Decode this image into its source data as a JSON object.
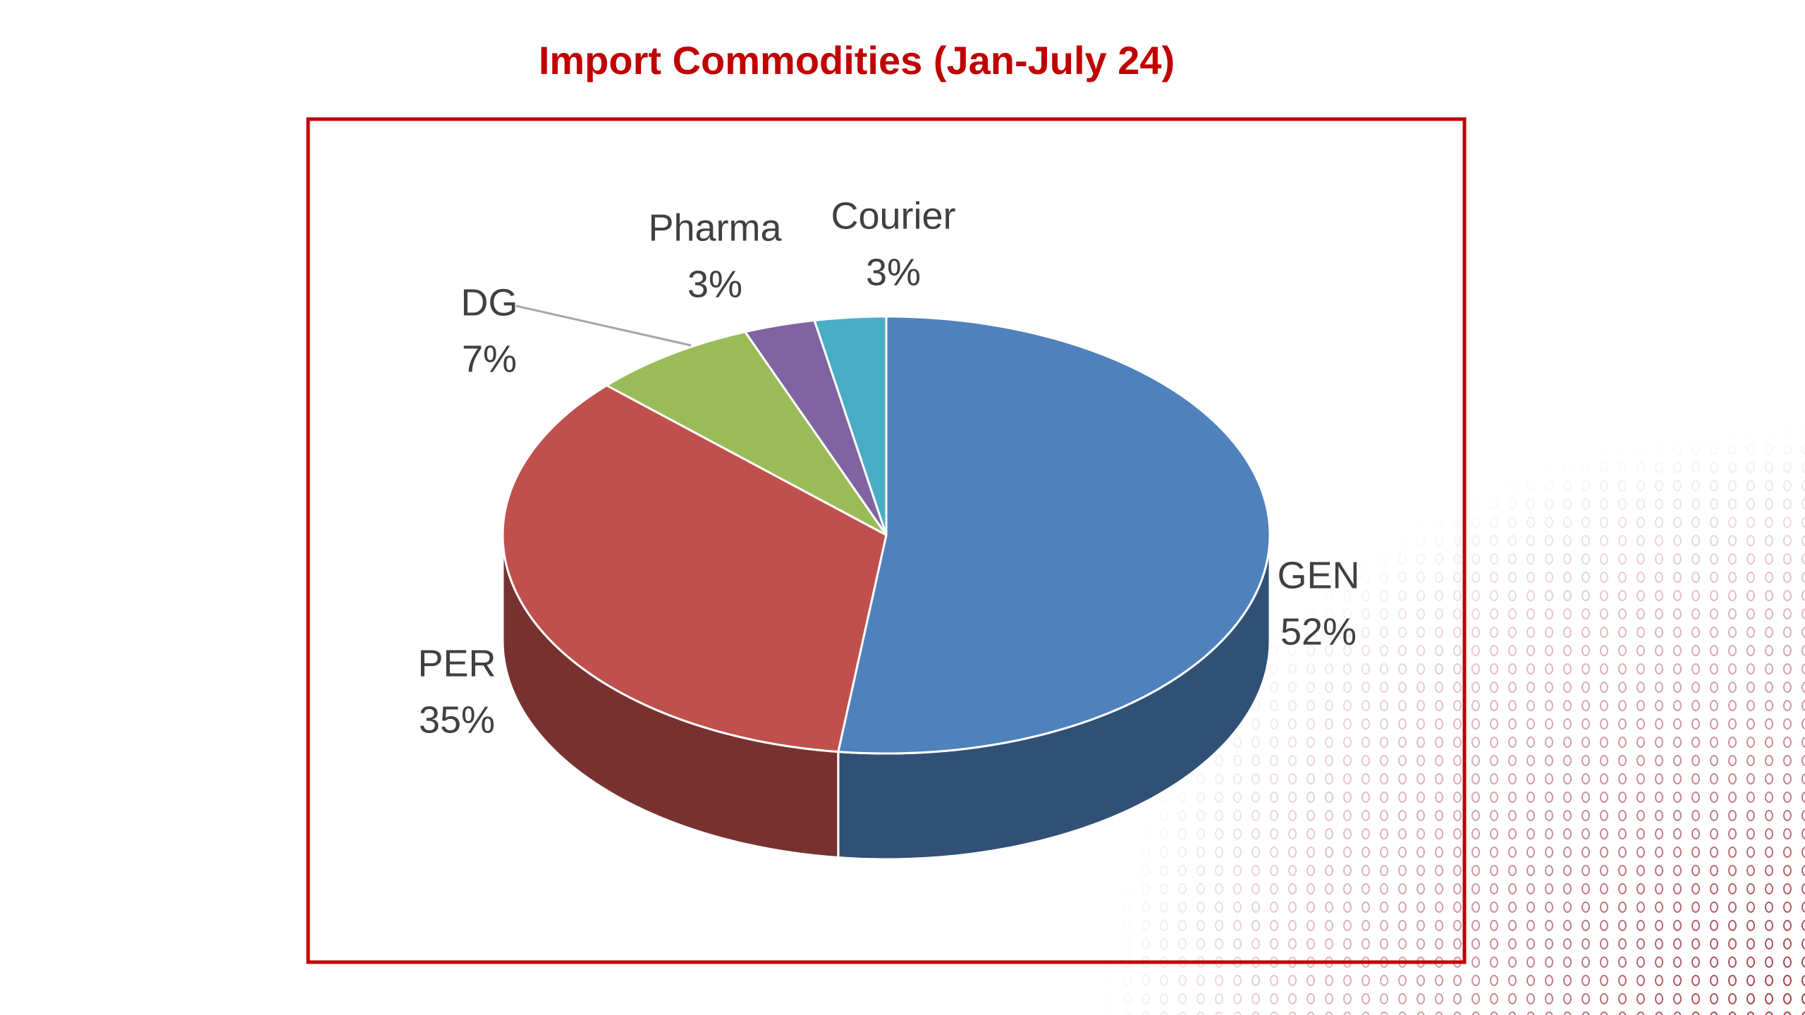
{
  "chart_data": {
    "type": "pie",
    "title": "Import Commodities  (Jan-July 24)",
    "categories": [
      "GEN",
      "PER",
      "DG",
      "Pharma",
      "Courier"
    ],
    "values": [
      52,
      35,
      7,
      3,
      3
    ],
    "value_labels": [
      "52%",
      "35%",
      "7%",
      "3%",
      "3%"
    ],
    "colors": [
      "#4f81bd",
      "#c0504d",
      "#9bbb59",
      "#8064a2",
      "#4bacc6"
    ]
  }
}
